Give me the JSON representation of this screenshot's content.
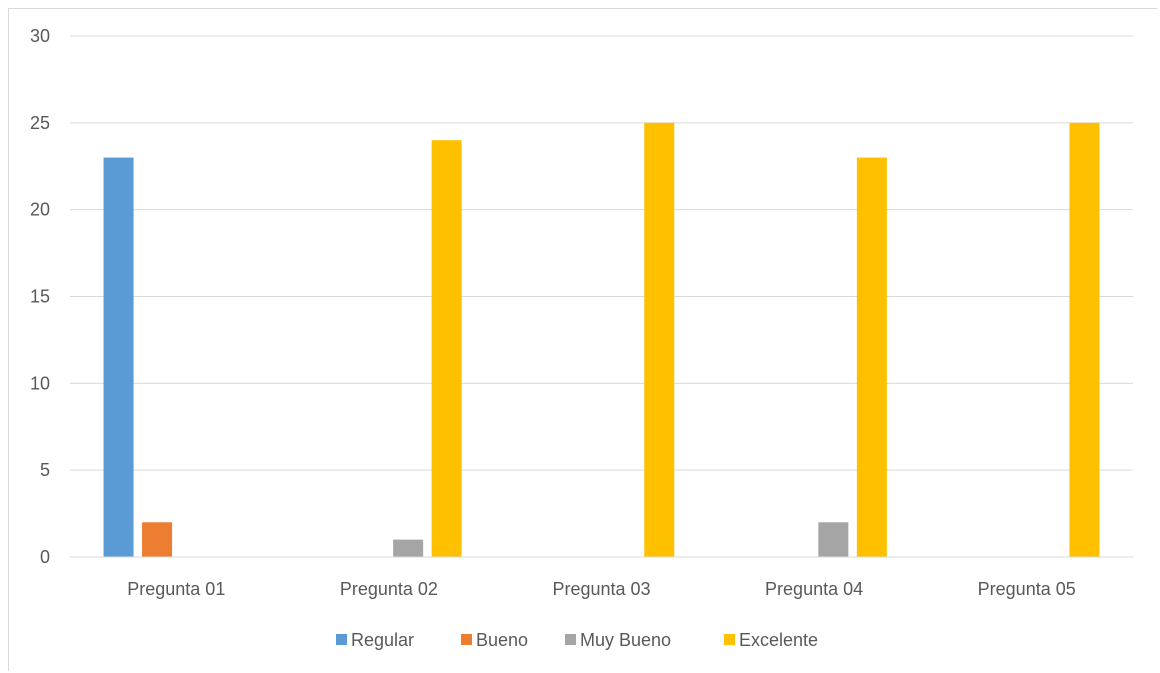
{
  "chart_data": {
    "type": "bar",
    "categories": [
      "Pregunta 01",
      "Pregunta 02",
      "Pregunta 03",
      "Pregunta 04",
      "Pregunta 05"
    ],
    "series": [
      {
        "name": "Regular",
        "color": "#5b9bd5",
        "values": [
          23,
          0,
          0,
          0,
          0
        ]
      },
      {
        "name": "Bueno",
        "color": "#ed7d31",
        "values": [
          2,
          0,
          0,
          0,
          0
        ]
      },
      {
        "name": "Muy Bueno",
        "color": "#a5a5a5",
        "values": [
          0,
          1,
          0,
          2,
          0
        ]
      },
      {
        "name": "Excelente",
        "color": "#ffc000",
        "values": [
          0,
          24,
          25,
          23,
          25
        ]
      }
    ],
    "yticks": [
      "0",
      "5",
      "10",
      "15",
      "20",
      "25",
      "30"
    ],
    "ylim": [
      0,
      30
    ],
    "grid": true,
    "legend_position": "bottom"
  }
}
